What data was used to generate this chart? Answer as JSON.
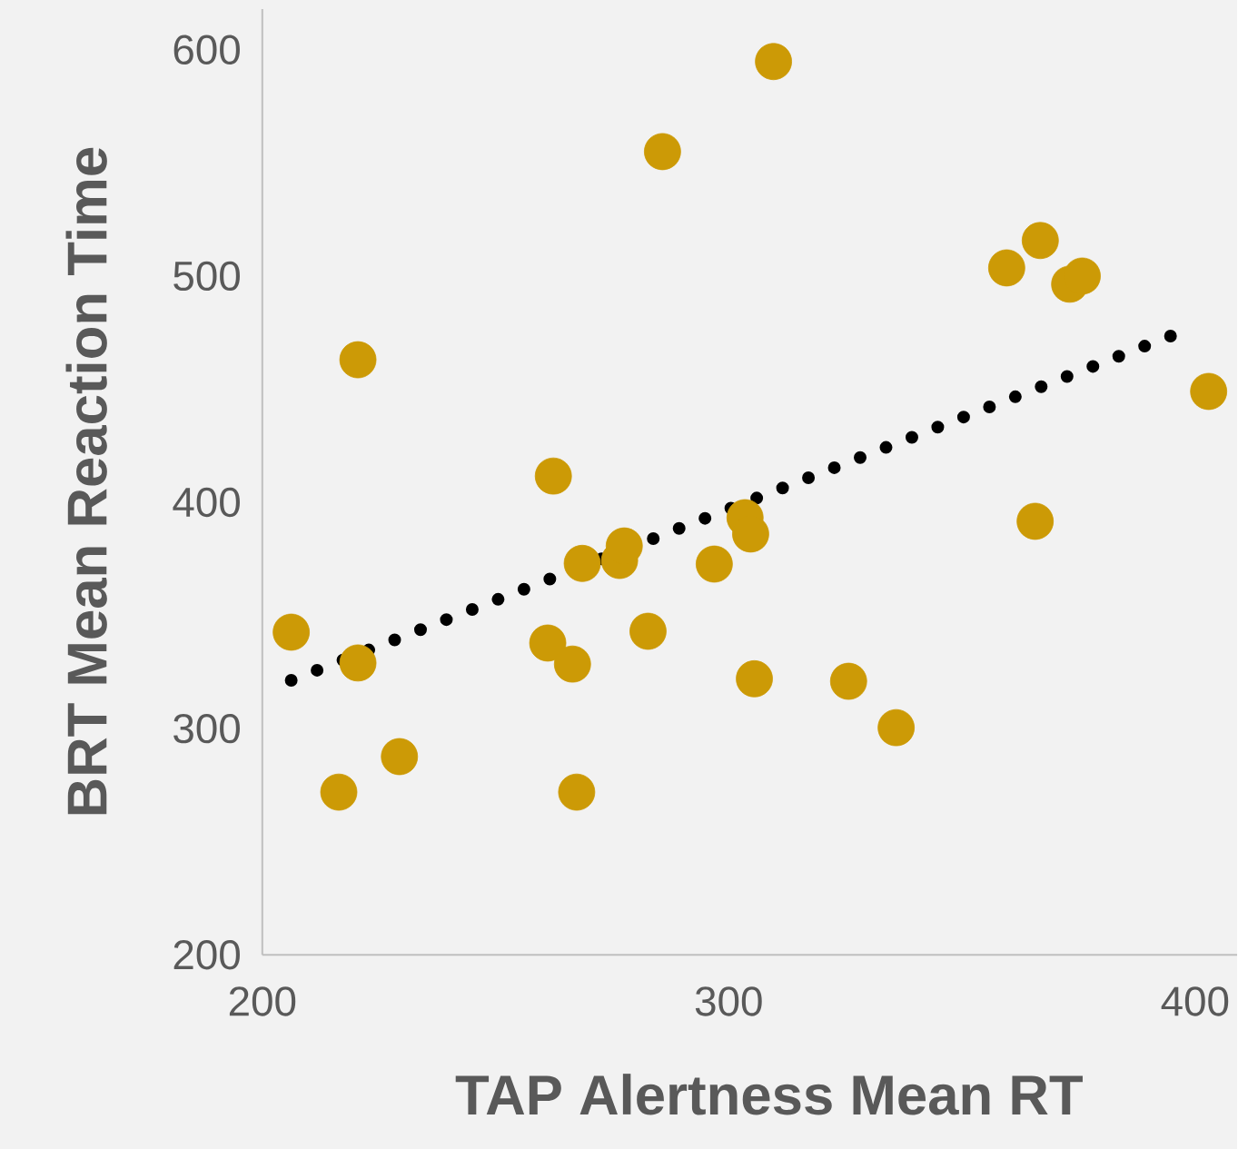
{
  "chart_data": {
    "type": "scatter",
    "xlabel": "TAP Alertness Mean RT",
    "ylabel": "BRT Mean Reaction Time",
    "xlim": [
      200,
      409
    ],
    "ylim": [
      200,
      618
    ],
    "xticks": [
      200,
      300,
      400
    ],
    "yticks": [
      200,
      300,
      400,
      500,
      600
    ],
    "grid": false,
    "series": [
      {
        "color": "#cc9a06",
        "marker": "circle",
        "x": [
          206.2,
          216.4,
          220.5,
          220.5,
          229.4,
          261.2,
          262.4,
          266.5,
          267.4,
          268.6,
          276.6,
          277.6,
          282.7,
          285.8,
          296.9,
          303.5,
          304.7,
          305.5,
          309.6,
          325.7,
          335.9,
          359.6,
          365.7,
          366.8,
          373.1,
          375.8,
          402.9
        ],
        "values": [
          342.6,
          271.9,
          463,
          329,
          287.6,
          337.8,
          411.6,
          328.5,
          271.9,
          373,
          374.3,
          380.7,
          343,
          555,
          372.7,
          393.2,
          386,
          322,
          594.8,
          320.9,
          300.4,
          503.6,
          391.6,
          515.7,
          496.4,
          500,
          449
        ]
      },
      {
        "type": "line",
        "color": "#000000",
        "line_style": "dotted",
        "marker": "none",
        "x": [
          206.2,
          397.7
        ],
        "values": [
          321.3,
          475.9
        ]
      }
    ]
  }
}
